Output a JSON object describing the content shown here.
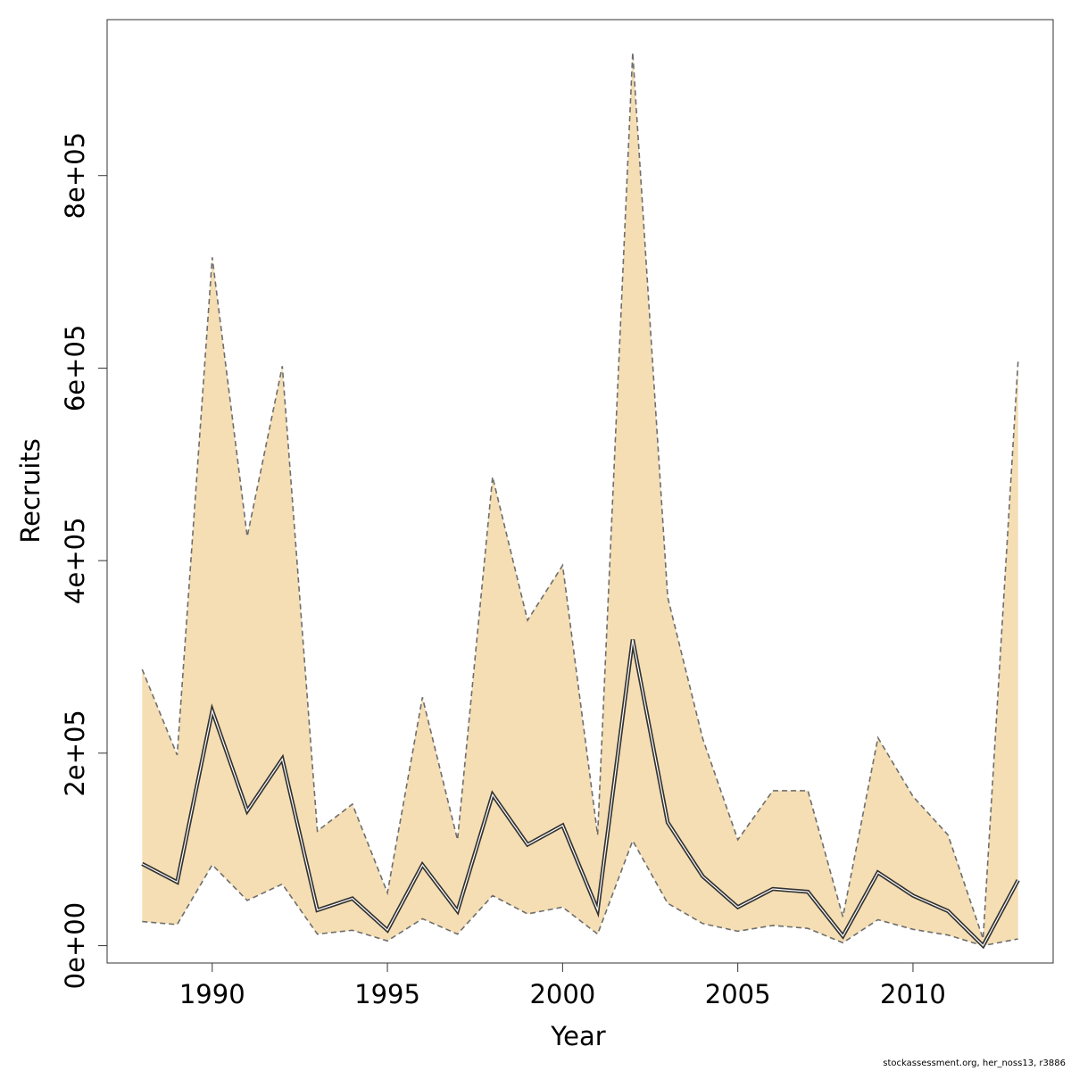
{
  "chart_data": {
    "type": "area",
    "title": "",
    "xlabel": "Year",
    "ylabel": "Recruits",
    "xlim": [
      1987,
      2014
    ],
    "ylim": [
      -18000,
      962000
    ],
    "x_ticks": [
      1990,
      1995,
      2000,
      2005,
      2010
    ],
    "y_ticks": [
      0,
      200000,
      400000,
      600000,
      800000
    ],
    "y_tick_labels": [
      "0e+00",
      "2e+05",
      "4e+05",
      "6e+05",
      "8e+05"
    ],
    "x_tick_labels": [
      "1990",
      "1995",
      "2000",
      "2005",
      "2010"
    ],
    "grid": false,
    "legend": "none",
    "colors": {
      "band": "#f5deb3",
      "bound_line": "#6e6e6e",
      "estimate_line": "#333333"
    },
    "series": [
      {
        "years": [
          1988,
          1989,
          1990,
          1991,
          1992,
          1993,
          1994,
          1995,
          1996,
          1997,
          1998,
          1999,
          2000,
          2001,
          2002,
          2003,
          2004,
          2005,
          2006,
          2007,
          2008,
          2009,
          2010,
          2011,
          2012,
          2013
        ],
        "estimate": [
          85000,
          66000,
          244000,
          140000,
          194000,
          37000,
          49000,
          16000,
          84000,
          36000,
          157000,
          105000,
          125000,
          37000,
          318000,
          128000,
          72000,
          40000,
          59000,
          56000,
          10000,
          76000,
          52000,
          36000,
          0,
          68000
        ],
        "lower": [
          25000,
          22000,
          84000,
          47000,
          64000,
          12000,
          16000,
          5000,
          28000,
          12000,
          52000,
          33000,
          40000,
          12000,
          109000,
          44000,
          23000,
          15000,
          21000,
          18000,
          3000,
          27000,
          17000,
          11000,
          0,
          7000
        ],
        "upper": [
          287000,
          198000,
          715000,
          425000,
          602000,
          119000,
          147000,
          55000,
          258000,
          110000,
          487000,
          338000,
          395000,
          115000,
          928000,
          362000,
          215000,
          110000,
          161000,
          161000,
          30000,
          216000,
          155000,
          115000,
          7000,
          607000
        ]
      }
    ]
  },
  "footer": {
    "credit": "stockassessment.org, her_noss13, r3886"
  }
}
